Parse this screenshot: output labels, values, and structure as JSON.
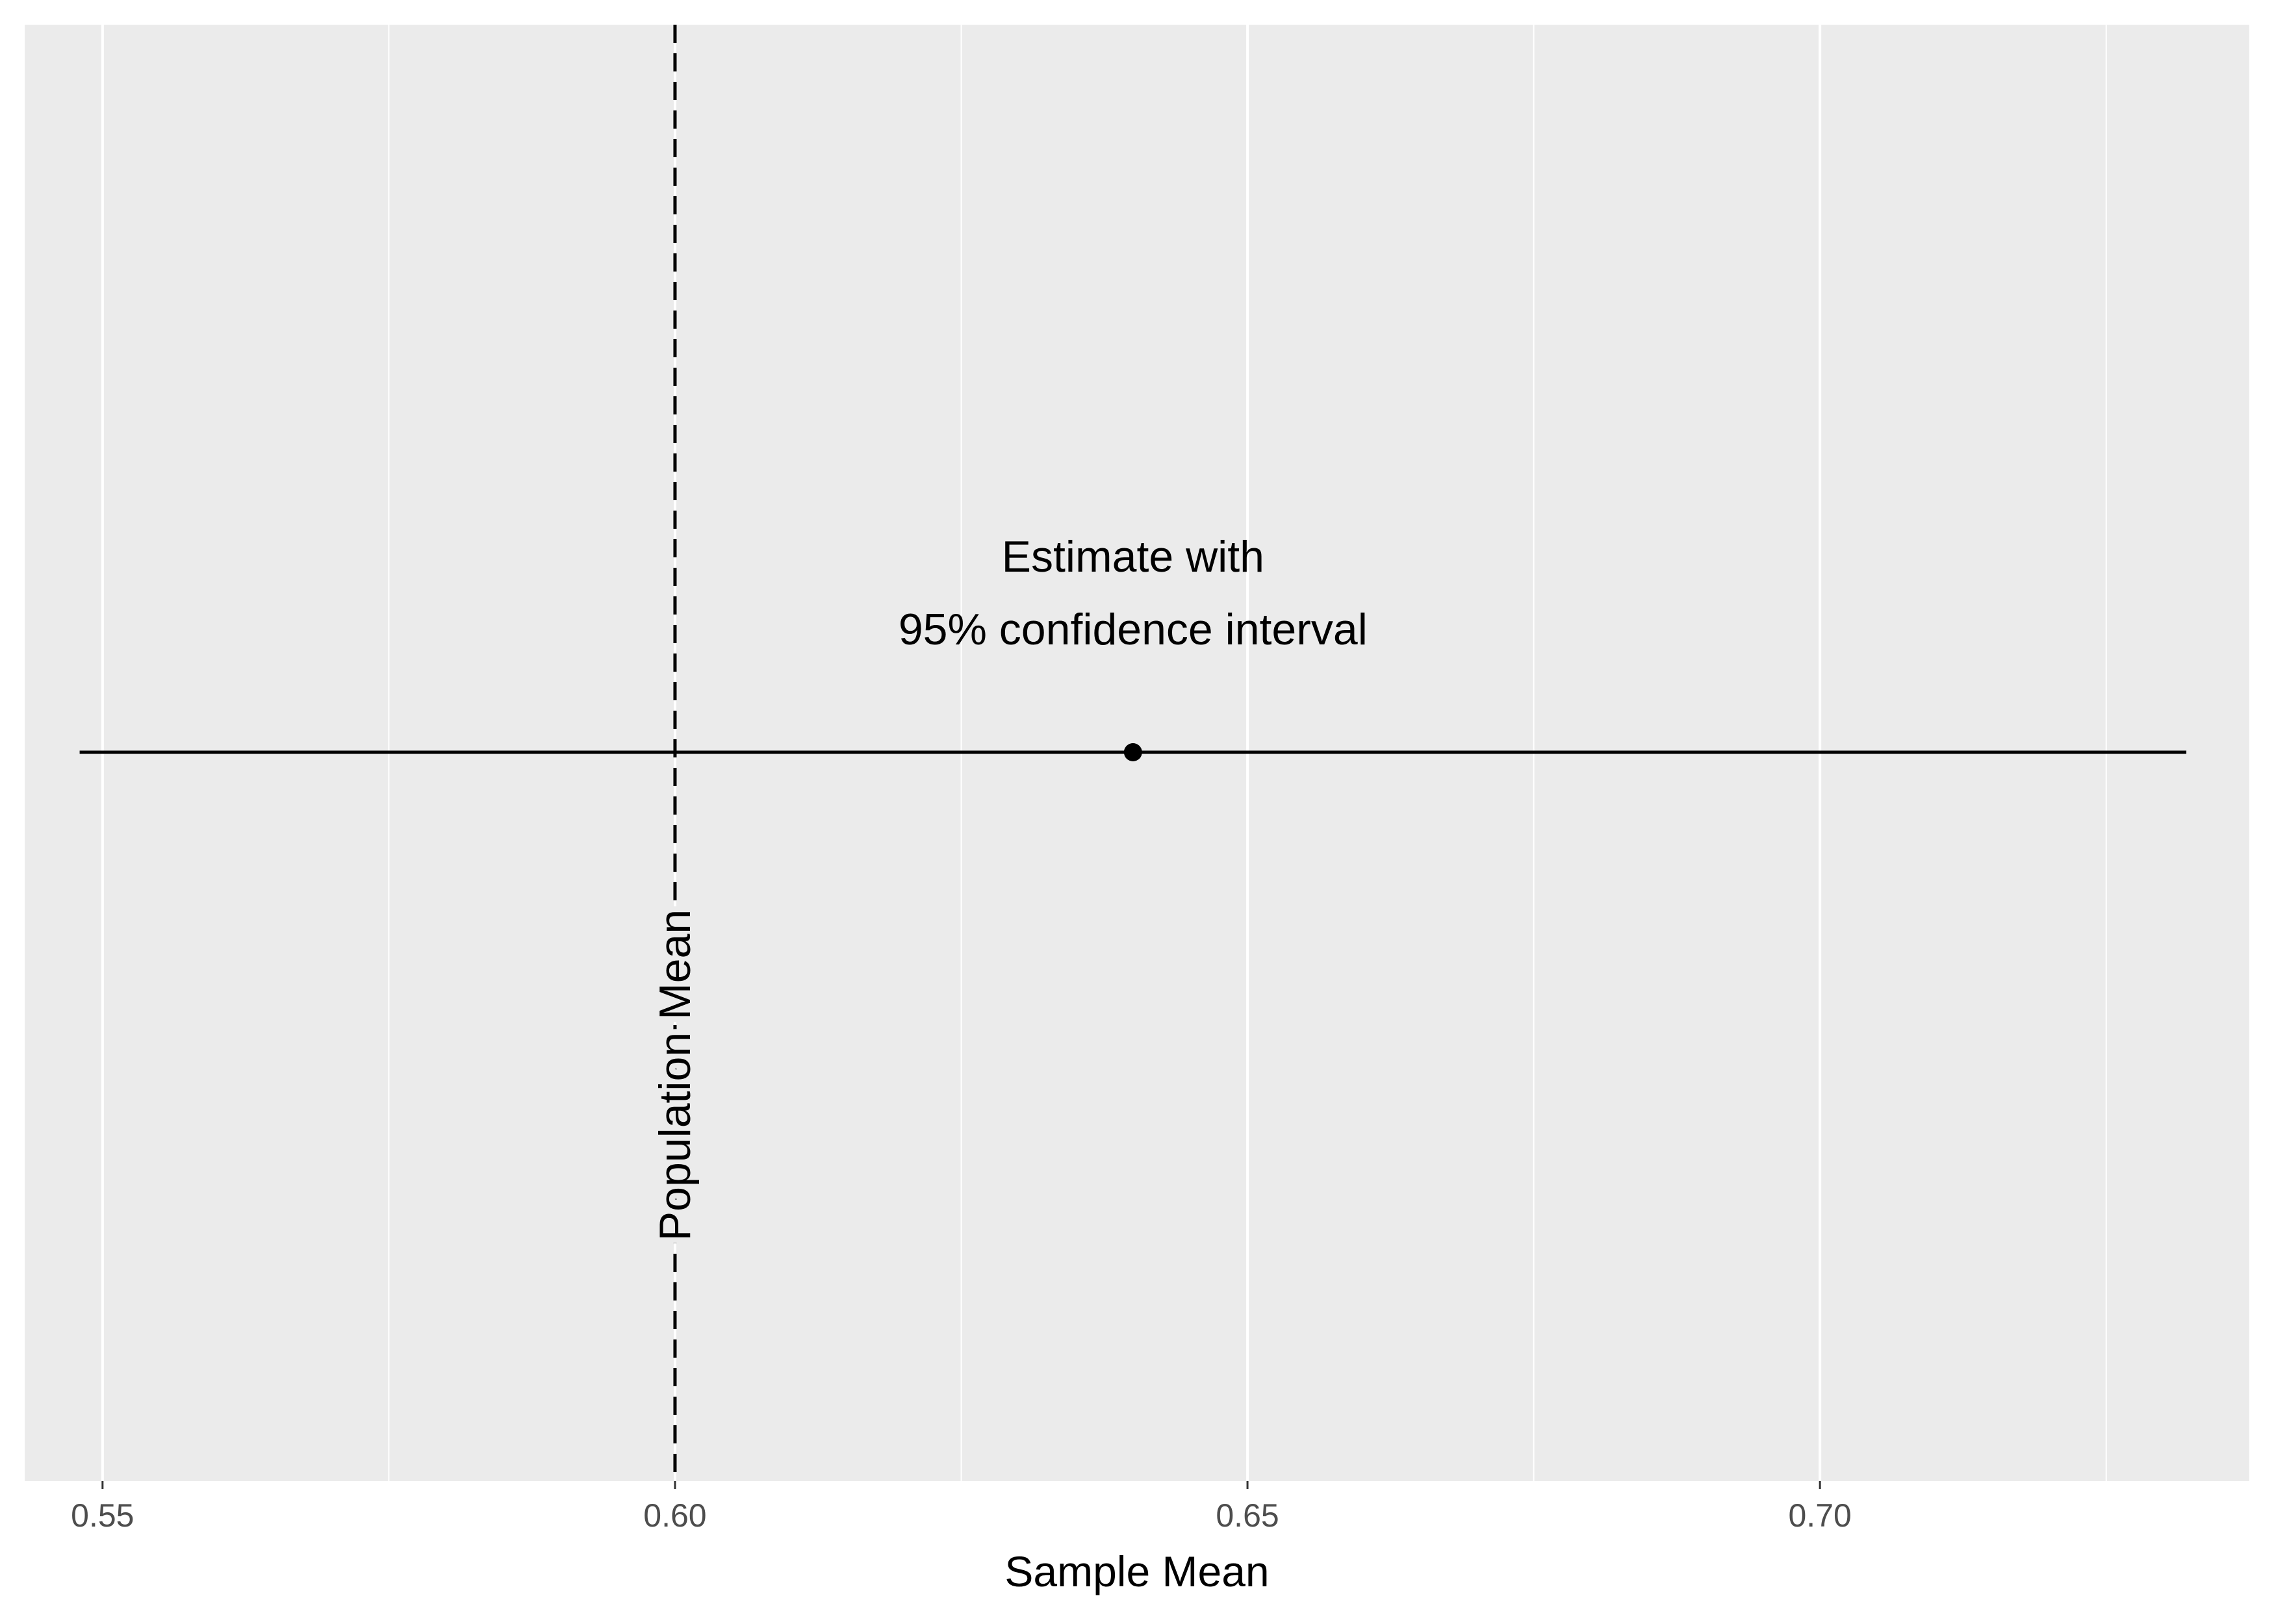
{
  "chart_data": {
    "type": "scatter",
    "title": "",
    "xlabel": "Sample Mean",
    "ylabel": "",
    "xlim": [
      0.5432,
      0.7375
    ],
    "x_ticks": [
      {
        "value": 0.55,
        "label": "0.55"
      },
      {
        "value": 0.6,
        "label": "0.60"
      },
      {
        "value": 0.65,
        "label": "0.65"
      },
      {
        "value": 0.7,
        "label": "0.70"
      }
    ],
    "x_minor_ticks": [
      0.575,
      0.625,
      0.675,
      0.725
    ],
    "grid": true,
    "estimate": {
      "x": 0.64,
      "ci_low": 0.548,
      "ci_high": 0.732
    },
    "reference_line": {
      "x": 0.6,
      "style": "dashed",
      "label": "Population Mean"
    },
    "annotation": {
      "lines": [
        "Estimate with",
        "95% confidence interval"
      ]
    },
    "colors": {
      "panel": "#EBEBEB",
      "grid": "#FFFFFF",
      "marks": "#000000",
      "tick_text": "#4D4D4D"
    }
  }
}
